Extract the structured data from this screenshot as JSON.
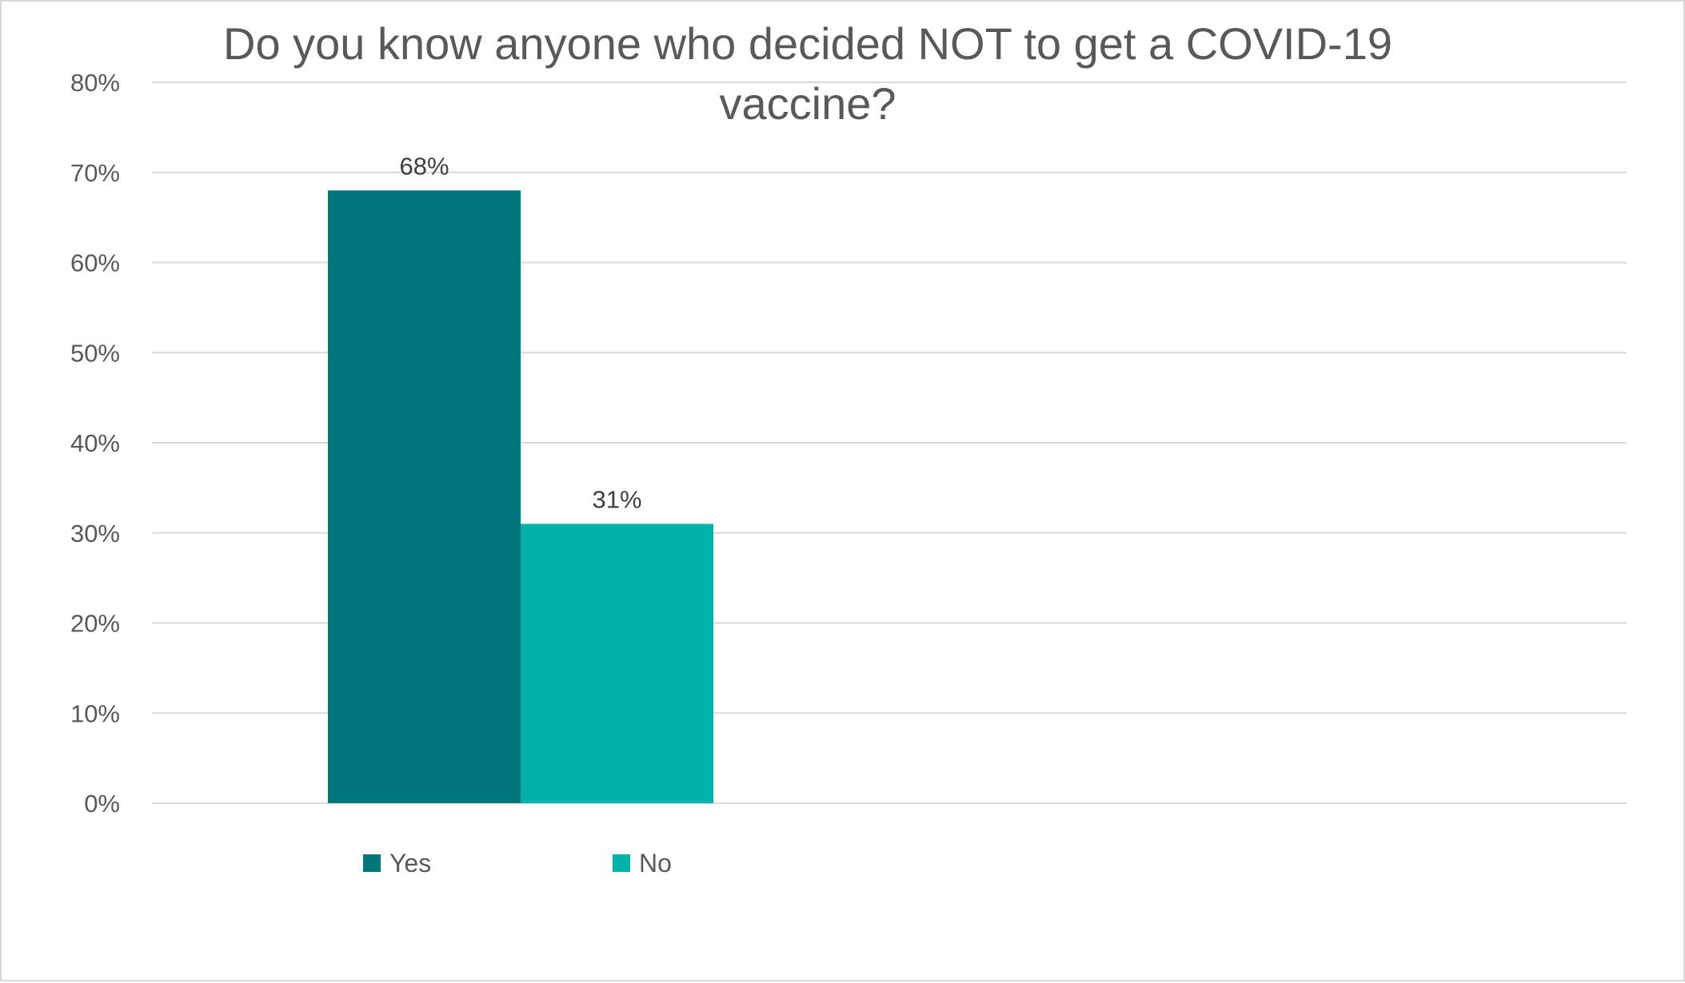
{
  "chart_data": {
    "type": "bar",
    "title_lines": [
      "Do you know anyone who decided NOT to get a COVID-19",
      "vaccine?"
    ],
    "xlabel": "",
    "ylabel": "",
    "categories": [
      ""
    ],
    "series": [
      {
        "name": "Yes",
        "values": [
          68
        ],
        "label": "68%",
        "color": "#00757a"
      },
      {
        "name": "No",
        "values": [
          31
        ],
        "label": "31%",
        "color": "#00b2aa"
      }
    ],
    "ylim": [
      0,
      80
    ],
    "y_ticks": [
      0,
      10,
      20,
      30,
      40,
      50,
      60,
      70,
      80
    ],
    "y_tick_labels": [
      "0%",
      "10%",
      "20%",
      "30%",
      "40%",
      "50%",
      "60%",
      "70%",
      "80%"
    ],
    "grid": true,
    "legend_position": "bottom"
  }
}
